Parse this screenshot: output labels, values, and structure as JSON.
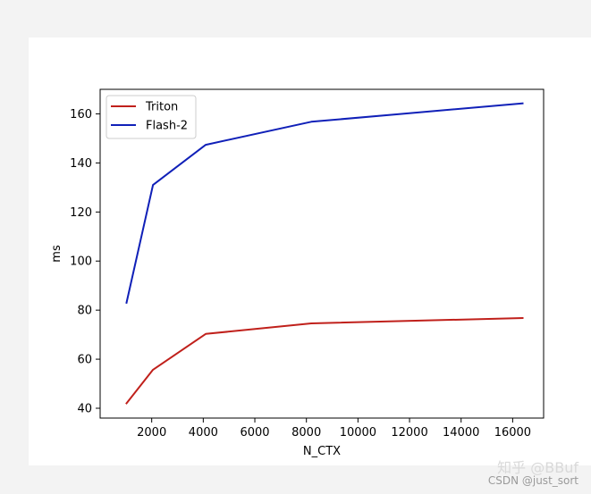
{
  "chart_data": {
    "type": "line",
    "title": "",
    "xlabel": "N_CTX",
    "ylabel": "ms",
    "xlim": [
      0,
      17200
    ],
    "ylim": [
      36,
      170
    ],
    "xticks": [
      2000,
      4000,
      6000,
      8000,
      10000,
      12000,
      14000,
      16000
    ],
    "yticks": [
      40,
      60,
      80,
      100,
      120,
      140,
      160
    ],
    "grid": false,
    "legend_position": "upper-left",
    "series": [
      {
        "name": "Triton",
        "color": "#c0201b",
        "x": [
          1024,
          2048,
          4096,
          8192,
          16384
        ],
        "y": [
          42,
          55.7,
          70.3,
          74.6,
          76.8
        ]
      },
      {
        "name": "Flash-2",
        "color": "#1020b8",
        "x": [
          1024,
          2048,
          4096,
          8192,
          16384
        ],
        "y": [
          83,
          131,
          147.4,
          156.8,
          164.3
        ]
      }
    ]
  },
  "watermark": {
    "main": "知乎 @BBuf",
    "sub": "CSDN @just_sort"
  }
}
